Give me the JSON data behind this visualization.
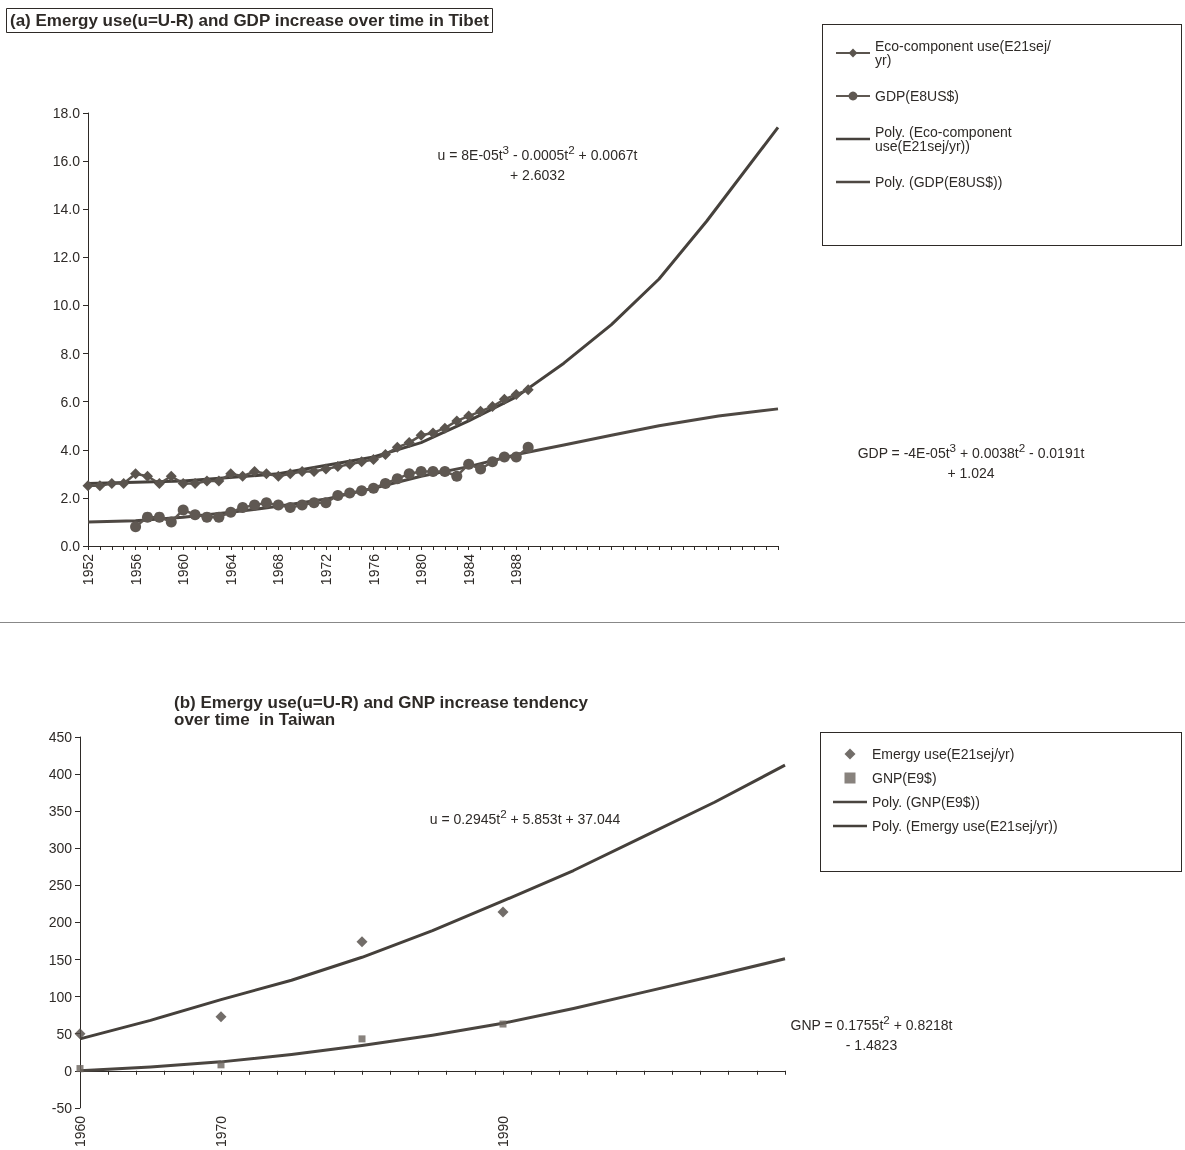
{
  "chart_data": [
    {
      "type": "line",
      "title": "(a) Emergy use(u=U-R) and GDP increase over time in Tibet",
      "x": [
        1952,
        1953,
        1954,
        1955,
        1956,
        1957,
        1958,
        1959,
        1960,
        1961,
        1962,
        1963,
        1964,
        1965,
        1966,
        1967,
        1968,
        1969,
        1970,
        1971,
        1972,
        1973,
        1974,
        1975,
        1976,
        1977,
        1978,
        1979,
        1980,
        1981,
        1982,
        1983,
        1984,
        1985,
        1986,
        1987,
        1988,
        1989
      ],
      "series": [
        {
          "name": "Eco-component use(E21sej/yr)",
          "color": "#5a544e",
          "marker": "diamond",
          "values": [
            2.5,
            2.5,
            2.6,
            2.6,
            3.0,
            2.9,
            2.6,
            2.9,
            2.6,
            2.6,
            2.7,
            2.7,
            3.0,
            2.9,
            3.1,
            3.0,
            2.9,
            3.0,
            3.1,
            3.1,
            3.2,
            3.3,
            3.4,
            3.5,
            3.6,
            3.8,
            4.1,
            4.3,
            4.6,
            4.7,
            4.9,
            5.2,
            5.4,
            5.6,
            5.8,
            6.1,
            6.3,
            6.5
          ]
        },
        {
          "name": "GDP(E8US$)",
          "color": "#5f5852",
          "marker": "circle",
          "values": [
            null,
            null,
            null,
            null,
            0.8,
            1.2,
            1.2,
            1.0,
            1.5,
            1.3,
            1.2,
            1.2,
            1.4,
            1.6,
            1.7,
            1.8,
            1.7,
            1.6,
            1.7,
            1.8,
            1.8,
            2.1,
            2.2,
            2.3,
            2.4,
            2.6,
            2.8,
            3.0,
            3.1,
            3.1,
            3.1,
            2.9,
            3.4,
            3.2,
            3.5,
            3.7,
            3.7,
            4.1
          ]
        },
        {
          "name": "Poly. (Eco-component use(E21sej/yr))",
          "type": "line",
          "marker": "none",
          "color": "#46413c",
          "x": [
            1952,
            1960,
            1968,
            1976,
            1980,
            1984,
            1988,
            1992,
            1996,
            2000,
            2004,
            2010
          ],
          "values": [
            2.6,
            2.7,
            3.0,
            3.7,
            4.3,
            5.2,
            6.2,
            7.6,
            9.2,
            11.1,
            13.5,
            17.4
          ]
        },
        {
          "name": "Poly. (GDP(E8US$))",
          "type": "line",
          "marker": "none",
          "color": "#4e4843",
          "x": [
            1952,
            1956,
            1960,
            1964,
            1968,
            1972,
            1976,
            1980,
            1984,
            1988,
            1992,
            1996,
            2000,
            2005,
            2010
          ],
          "values": [
            1.0,
            1.05,
            1.2,
            1.4,
            1.65,
            1.95,
            2.4,
            2.9,
            3.3,
            3.8,
            4.2,
            4.6,
            5.0,
            5.4,
            5.7
          ]
        }
      ],
      "xlim": [
        1952,
        2010
      ],
      "xticks": [
        1952,
        {
          "value": 1953,
          "label": null
        },
        {
          "value": 1954,
          "label": null
        },
        {
          "value": 1955,
          "label": null
        },
        1956,
        {
          "value": 1957,
          "label": null
        },
        {
          "value": 1958,
          "label": null
        },
        {
          "value": 1959,
          "label": null
        },
        1960,
        {
          "value": 1961,
          "label": null
        },
        {
          "value": 1962,
          "label": null
        },
        {
          "value": 1963,
          "label": null
        },
        1964,
        {
          "value": 1965,
          "label": null
        },
        {
          "value": 1966,
          "label": null
        },
        {
          "value": 1967,
          "label": null
        },
        1968,
        {
          "value": 1969,
          "label": null
        },
        {
          "value": 1970,
          "label": null
        },
        {
          "value": 1971,
          "label": null
        },
        1972,
        {
          "value": 1973,
          "label": null
        },
        {
          "value": 1974,
          "label": null
        },
        {
          "value": 1975,
          "label": null
        },
        1976,
        {
          "value": 1977,
          "label": null
        },
        {
          "value": 1978,
          "label": null
        },
        {
          "value": 1979,
          "label": null
        },
        1980,
        {
          "value": 1981,
          "label": null
        },
        {
          "value": 1982,
          "label": null
        },
        {
          "value": 1983,
          "label": null
        },
        1984,
        {
          "value": 1985,
          "label": null
        },
        {
          "value": 1986,
          "label": null
        },
        {
          "value": 1987,
          "label": null
        },
        1988,
        {
          "value": 1989,
          "label": null
        },
        {
          "value": 1990,
          "label": null
        },
        {
          "value": 1991,
          "label": null
        },
        {
          "value": 1992,
          "label": null
        },
        {
          "value": 1993,
          "label": null
        },
        {
          "value": 1994,
          "label": null
        },
        {
          "value": 1995,
          "label": null
        },
        {
          "value": 1996,
          "label": null
        },
        {
          "value": 1997,
          "label": null
        },
        {
          "value": 1998,
          "label": null
        },
        {
          "value": 1999,
          "label": null
        },
        {
          "value": 2000,
          "label": null
        },
        {
          "value": 2001,
          "label": null
        },
        {
          "value": 2002,
          "label": null
        },
        {
          "value": 2003,
          "label": null
        },
        {
          "value": 2004,
          "label": null
        },
        {
          "value": 2005,
          "label": null
        },
        {
          "value": 2006,
          "label": null
        },
        {
          "value": 2007,
          "label": null
        },
        {
          "value": 2008,
          "label": null
        },
        {
          "value": 2009,
          "label": null
        },
        {
          "value": 2010,
          "label": null
        }
      ],
      "ylim": [
        0,
        18
      ],
      "yticks": [
        {
          "value": 0,
          "label": "0.0"
        },
        {
          "value": 2,
          "label": "2.0"
        },
        {
          "value": 4,
          "label": "4.0"
        },
        {
          "value": 6,
          "label": "6.0"
        },
        {
          "value": 8,
          "label": "8.0"
        },
        {
          "value": 10,
          "label": "10.0"
        },
        {
          "value": 12,
          "label": "12.0"
        },
        {
          "value": 14,
          "label": "14.0"
        },
        {
          "value": 16,
          "label": "16.0"
        },
        {
          "value": 18,
          "label": "18.0"
        }
      ],
      "legend": "top right",
      "annotations": [
        "u = 8E-05t$^{3}$ - 0.0005t$^{2}$ + 0.0067t + 2.6032",
        "GDP = -4E-05t$^{3}$ + 0.0038t$^{2}$ - 0.0191t + 1.024"
      ]
    },
    {
      "type": "scatter",
      "title": "(b) Emergy use(u=U-R) and GNP increase tendency over time  in Taiwan",
      "x": [
        1960,
        1970,
        1980,
        1990
      ],
      "series": [
        {
          "name": "Emergy use(E21sej/yr)",
          "color": "#4f4944",
          "marker": "diamond",
          "values": [
            50,
            73,
            174,
            214
          ]
        },
        {
          "name": "GNP(E9$)",
          "color": "#6a635d",
          "marker": "square",
          "values": [
            3,
            8,
            43,
            63
          ]
        },
        {
          "name": "Poly. (GNP(E9$))",
          "type": "line",
          "marker": "none",
          "color": "#4a4540",
          "x": [
            1960,
            1965,
            1970,
            1975,
            1980,
            1985,
            1990,
            1995,
            2000,
            2005,
            2010
          ],
          "values": [
            0,
            5,
            12,
            22,
            34,
            48,
            64,
            84,
            106,
            128,
            151
          ]
        },
        {
          "name": "Poly. (Emergy use(E21sej/yr))",
          "type": "line",
          "marker": "none",
          "color": "#45403b",
          "x": [
            1960,
            1965,
            1970,
            1975,
            1980,
            1985,
            1990,
            1995,
            2000,
            2005,
            2010
          ],
          "values": [
            43,
            68,
            96,
            122,
            153,
            189,
            229,
            270,
            316,
            362,
            412
          ]
        }
      ],
      "xlim": [
        1960,
        2010
      ],
      "xticks": [
        1960,
        {
          "value": 1962,
          "label": null
        },
        {
          "value": 1964,
          "label": null
        },
        {
          "value": 1966,
          "label": null
        },
        {
          "value": 1968,
          "label": null
        },
        1970,
        {
          "value": 1972,
          "label": null
        },
        {
          "value": 1974,
          "label": null
        },
        {
          "value": 1976,
          "label": null
        },
        {
          "value": 1978,
          "label": null
        },
        {
          "value": 1980,
          "label": null
        },
        {
          "value": 1982,
          "label": null
        },
        {
          "value": 1984,
          "label": null
        },
        {
          "value": 1986,
          "label": null
        },
        {
          "value": 1988,
          "label": null
        },
        1990,
        {
          "value": 1992,
          "label": null
        },
        {
          "value": 1994,
          "label": null
        },
        {
          "value": 1996,
          "label": null
        },
        {
          "value": 1998,
          "label": null
        },
        {
          "value": 2000,
          "label": null
        },
        {
          "value": 2002,
          "label": null
        },
        {
          "value": 2004,
          "label": null
        },
        {
          "value": 2006,
          "label": null
        },
        {
          "value": 2008,
          "label": null
        },
        {
          "value": 2010,
          "label": null
        }
      ],
      "ylim": [
        -50,
        450
      ],
      "yticks": [
        -50,
        0,
        50,
        100,
        150,
        200,
        250,
        300,
        350,
        400,
        450
      ],
      "legend": "right",
      "annotations": [
        "u = 0.2945t$^{2}$ + 5.853t + 37.044",
        "GNP = 0.1755t$^{2}$ + 0.8218t - 1.4823"
      ]
    }
  ]
}
